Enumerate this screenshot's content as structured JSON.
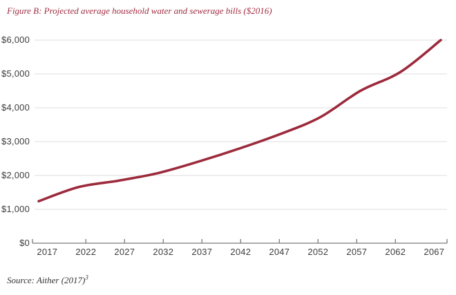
{
  "title": "Figure B: Projected average household water and sewerage bills ($2016)",
  "source": {
    "text": "Source: Aither (2017)",
    "superscript": "3"
  },
  "colors": {
    "line": "#9c2a3c",
    "title_red": "#a02d40",
    "grid": "#dcdcdc",
    "axis": "#7a7a7a",
    "label_text": "#3d3d3d"
  },
  "chart_data": {
    "type": "line",
    "title": "Figure B: Projected average household water and sewerage bills ($2016)",
    "categories": [
      "2017",
      "2022",
      "2027",
      "2032",
      "2037",
      "2042",
      "2047",
      "2052",
      "2057",
      "2062",
      "2067"
    ],
    "values": [
      1240,
      1660,
      1850,
      2080,
      2420,
      2800,
      3220,
      3720,
      4500,
      5060,
      6000
    ],
    "xlabel": "",
    "ylabel": "",
    "ylim": [
      0,
      6000
    ],
    "y_ticks": [
      {
        "label": "$6,000",
        "value": 6000
      },
      {
        "label": "$5,000",
        "value": 5000
      },
      {
        "label": "$4,000",
        "value": 4000
      },
      {
        "label": "$3,000",
        "value": 3000
      },
      {
        "label": "$2,000",
        "value": 2000
      },
      {
        "label": "$1,000",
        "value": 1000
      },
      {
        "label": "$0",
        "value": 0
      }
    ],
    "grid": "horizontal",
    "legend": "none",
    "line_color": "#9c2a3c"
  }
}
